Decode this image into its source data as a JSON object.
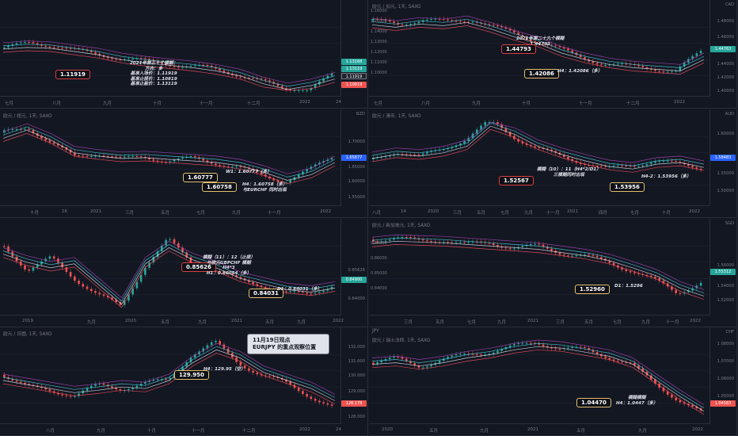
{
  "colors": {
    "up": "#26a69a",
    "down": "#ef5350",
    "bg": "#131722",
    "grid": "#2a2e39",
    "box_border": "#e1c16e"
  },
  "panels": [
    {
      "title": "",
      "currency": "",
      "y_ticks": [],
      "x_ticks": [
        "七月",
        "八月",
        "九月",
        "十月",
        "十一月",
        "十二月",
        "2022",
        "24"
      ],
      "price_badges": [
        {
          "text": "1.13168",
          "color": "#26a69a"
        },
        {
          "text": "1.13119",
          "color": "#26a69a"
        },
        {
          "text": "1.11919",
          "color": "#131722"
        },
        {
          "text": "1.10819",
          "color": "#ef5350"
        }
      ],
      "boxes": [
        {
          "text": "1.11919",
          "kind": "red"
        }
      ],
      "notes": [
        "2021年第三十个模糊：",
        "方向：多",
        "基准入场价：1.11919",
        "基准止损价：1.10819",
        "基准止盈价：1.13119"
      ],
      "series": {
        "trend": [
          0.55,
          0.57,
          0.56,
          0.52,
          0.48,
          0.42,
          0.38,
          0.35,
          0.32,
          0.28,
          0.22,
          0.12,
          0.05,
          0.1,
          0.18
        ],
        "closes": [
          0.55,
          0.6,
          0.58,
          0.5,
          0.45,
          0.4,
          0.37,
          0.33,
          0.3,
          0.24,
          0.15,
          0.05,
          0.02,
          0.2
        ]
      }
    },
    {
      "title": "欧元 / 加元, 1天, SAXO",
      "currency": "CAD",
      "y_ticks": [
        "1.16000",
        "1.15000",
        "1.14000",
        "1.13000",
        "1.12000",
        "1.11000",
        "1.10000"
      ],
      "x_ticks": [
        "七月",
        "八月",
        "九月",
        "十月",
        "十一月",
        "十二月",
        "2022"
      ],
      "right_ticks": [
        "1.48000",
        "1.46000",
        "1.44000",
        "1.42000",
        "1.40000"
      ],
      "price_badges": [
        {
          "text": "1.44763",
          "color": "#26a69a"
        }
      ],
      "boxes": [
        {
          "text": "1.44793",
          "kind": "red"
        },
        {
          "text": "1.42086",
          "kind": "gold"
        }
      ],
      "notes_a": [
        "2021年第二十九个模糊",
        "1.44793"
      ],
      "notes_b": [
        "H4：1.42086（多）"
      ],
      "series": {
        "trend": [
          0.85,
          0.82,
          0.86,
          0.84,
          0.88,
          0.8,
          0.7,
          0.62,
          0.5,
          0.42,
          0.36,
          0.32,
          0.3,
          0.28,
          0.42
        ],
        "closes": [
          0.88,
          0.84,
          0.9,
          0.86,
          0.9,
          0.78,
          0.68,
          0.58,
          0.45,
          0.36,
          0.32,
          0.3,
          0.25,
          0.5
        ]
      }
    },
    {
      "title": "欧元 / 纽元, 1天, SAXO",
      "currency": "NZD",
      "y_ticks": [
        "1.70000",
        "1.65877",
        "1.65000",
        "1.60000",
        "1.55000"
      ],
      "x_ticks": [
        "十月",
        "16",
        "2021",
        "三月",
        "五月",
        "七月",
        "九月",
        "十一月",
        "2022"
      ],
      "price_badges": [
        {
          "text": "1.65877",
          "color": "#2962ff"
        }
      ],
      "boxes": [
        {
          "text": "1.60777",
          "kind": "gold"
        },
        {
          "text": "1.60758",
          "kind": "gold"
        }
      ],
      "notes": [
        "W1：1.60777（多）",
        "H4：1.60758（多）",
        "与EURCHF 同时出现"
      ],
      "series": {
        "trend": [
          0.8,
          0.9,
          0.78,
          0.62,
          0.58,
          0.55,
          0.56,
          0.54,
          0.52,
          0.5,
          0.46,
          0.38,
          0.28,
          0.35,
          0.5
        ],
        "closes": [
          0.85,
          0.92,
          0.72,
          0.55,
          0.6,
          0.52,
          0.55,
          0.5,
          0.53,
          0.48,
          0.42,
          0.32,
          0.25,
          0.38,
          0.55
        ]
      }
    },
    {
      "title": "欧元 / 澳币, 1天, SAXO",
      "currency": "AUD",
      "y_ticks": [
        "1.60000",
        "1.58483",
        "1.55000",
        "1.50000"
      ],
      "x_ticks": [
        "八月",
        "14",
        "2020",
        "三月",
        "五月",
        "七月",
        "九月",
        "十一月",
        "2021",
        "四月",
        "七月",
        "十月",
        "2022"
      ],
      "price_badges": [
        {
          "text": "1.58483",
          "color": "#2962ff"
        }
      ],
      "boxes": [
        {
          "text": "1.52567",
          "kind": "red"
        },
        {
          "text": "1.53956",
          "kind": "gold"
        }
      ],
      "notes_a": [
        "模糊（10）：11（H4*2/D1）",
        "三模糊同时出现"
      ],
      "notes_b": [
        "H4-2：1.53956（多）"
      ],
      "series": {
        "trend": [
          0.55,
          0.6,
          0.58,
          0.62,
          0.7,
          0.95,
          0.85,
          0.7,
          0.6,
          0.52,
          0.45,
          0.42,
          0.48,
          0.5,
          0.44
        ],
        "closes": [
          0.52,
          0.62,
          0.55,
          0.65,
          0.78,
          1.0,
          0.8,
          0.65,
          0.56,
          0.48,
          0.4,
          0.45,
          0.5,
          0.46,
          0.42
        ]
      }
    },
    {
      "title": "欧元 / 英镑, 1天, SAXO",
      "currency": "",
      "y_ticks": [
        "0.85626",
        "0.84900",
        "0.84000"
      ],
      "x_ticks": [
        "2019",
        "九月",
        "2020",
        "五月",
        "九月",
        "2021",
        "五月",
        "九月",
        "2022"
      ],
      "price_badges": [
        {
          "text": "0.84900",
          "color": "#26a69a"
        }
      ],
      "boxes": [
        {
          "text": "0.85626",
          "kind": "red"
        },
        {
          "text": "0.84031",
          "kind": "gold"
        }
      ],
      "notes_a": [
        "模糊（11）：12（止损）",
        "与欧元GBPCHF 模糊",
        "H4*3",
        "H1：0.86054（多）"
      ],
      "notes_b": [
        "D1：0.84031（多）"
      ],
      "series": {
        "trend": [
          0.72,
          0.62,
          0.55,
          0.6,
          0.35,
          0.1,
          0.6,
          0.8,
          0.65,
          0.55,
          0.42,
          0.35,
          0.28,
          0.25,
          0.3
        ],
        "closes": [
          0.8,
          0.5,
          0.65,
          0.4,
          0.2,
          0.05,
          0.55,
          0.88,
          0.6,
          0.5,
          0.38,
          0.32,
          0.22,
          0.2,
          0.32
        ]
      }
    },
    {
      "title": "欧元 / 新加坡元, 1天, SAXO",
      "currency": "SGD",
      "y_ticks": [
        "0.87000",
        "0.86000",
        "0.85000",
        "0.84000"
      ],
      "right_ticks": [
        "1.56000",
        "1.55312",
        "1.54000",
        "1.52000"
      ],
      "x_ticks": [
        "三月",
        "五月",
        "七月",
        "九月",
        "2021",
        "三月",
        "五月",
        "七月",
        "九月",
        "十一月",
        "2022"
      ],
      "price_badges": [
        {
          "text": "1.55312",
          "color": "#26a69a"
        }
      ],
      "boxes": [
        {
          "text": "1.52960",
          "kind": "gold"
        }
      ],
      "notes": [
        "D1：1.5296"
      ],
      "series": {
        "trend": [
          0.85,
          0.88,
          0.87,
          0.86,
          0.84,
          0.82,
          0.8,
          0.78,
          0.74,
          0.7,
          0.64,
          0.55,
          0.45,
          0.3,
          0.2
        ],
        "closes": [
          0.88,
          0.9,
          0.86,
          0.88,
          0.82,
          0.84,
          0.78,
          0.8,
          0.72,
          0.68,
          0.6,
          0.5,
          0.38,
          0.22,
          0.35
        ]
      }
    },
    {
      "title": "欧元 / 日圆, 1天, SAXO",
      "currency": "",
      "y_ticks": [
        "132.000",
        "131.000",
        "130.000",
        "129.000",
        "128.178",
        "128.000"
      ],
      "x_ticks": [
        "八月",
        "九月",
        "十月",
        "十一月",
        "十二月",
        "2022",
        "24"
      ],
      "price_badges": [
        {
          "text": "128.178",
          "color": "#ef5350"
        }
      ],
      "boxes": [
        {
          "text": "129.950",
          "kind": "gold"
        }
      ],
      "notes": [
        "H4：129.95（空）"
      ],
      "callout": [
        "11月19日观点",
        "EURJPY 的重点观察位置"
      ],
      "series": {
        "trend": [
          0.5,
          0.45,
          0.4,
          0.35,
          0.38,
          0.42,
          0.4,
          0.5,
          0.72,
          0.88,
          0.78,
          0.6,
          0.5,
          0.4,
          0.25
        ],
        "closes": [
          0.55,
          0.4,
          0.35,
          0.3,
          0.42,
          0.38,
          0.45,
          0.48,
          0.8,
          0.95,
          0.7,
          0.55,
          0.45,
          0.3,
          0.15
        ]
      }
    },
    {
      "title": "欧元 / 瑞士法郎, 1天, SAXO",
      "currency": "CHF",
      "y_ticks": [
        "1.08000",
        "1.07000",
        "1.06000",
        "1.05000",
        "1.04583"
      ],
      "x_ticks": [
        "2020",
        "五月",
        "九月",
        "2021",
        "五月",
        "九月",
        "2022"
      ],
      "left_label": "JPY",
      "price_badges": [
        {
          "text": "1.04583",
          "color": "#ef5350"
        }
      ],
      "boxes": [
        {
          "text": "1.04470",
          "kind": "gold"
        }
      ],
      "notes": [
        "模糊模糊",
        "H4：1.0447（多）"
      ],
      "series": {
        "trend": [
          0.7,
          0.72,
          0.68,
          0.72,
          0.78,
          0.82,
          0.88,
          0.92,
          0.9,
          0.85,
          0.8,
          0.7,
          0.5,
          0.3,
          0.12
        ],
        "closes": [
          0.7,
          0.75,
          0.66,
          0.74,
          0.8,
          0.84,
          0.9,
          0.95,
          0.88,
          0.86,
          0.78,
          0.68,
          0.45,
          0.25,
          0.08
        ]
      }
    }
  ]
}
